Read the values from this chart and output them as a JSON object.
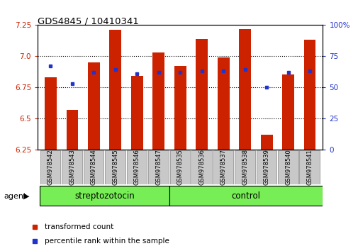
{
  "title": "GDS4845 / 10410341",
  "samples": [
    "GSM978542",
    "GSM978543",
    "GSM978544",
    "GSM978545",
    "GSM978546",
    "GSM978547",
    "GSM978535",
    "GSM978536",
    "GSM978537",
    "GSM978538",
    "GSM978539",
    "GSM978540",
    "GSM978541"
  ],
  "red_values": [
    6.83,
    6.57,
    6.95,
    7.21,
    6.84,
    7.03,
    6.92,
    7.14,
    6.99,
    7.22,
    6.37,
    6.85,
    7.13
  ],
  "blue_values": [
    67,
    53,
    62,
    64,
    61,
    62,
    62,
    63,
    63,
    64,
    50,
    62,
    63
  ],
  "ylim_left": [
    6.25,
    7.25
  ],
  "ylim_right": [
    0,
    100
  ],
  "yticks_left": [
    6.25,
    6.5,
    6.75,
    7.0,
    7.25
  ],
  "yticks_right": [
    0,
    25,
    50,
    75,
    100
  ],
  "ytick_labels_right": [
    "0",
    "25",
    "50",
    "75",
    "100%"
  ],
  "grid_ticks": [
    6.5,
    6.75,
    7.0
  ],
  "group1_label": "streptozotocin",
  "group2_label": "control",
  "group1_count": 6,
  "group2_count": 7,
  "agent_label": "agent",
  "legend_red": "transformed count",
  "legend_blue": "percentile rank within the sample",
  "bar_color": "#CC2200",
  "blue_color": "#2233CC",
  "group_bg_color": "#77EE55",
  "tick_label_bg": "#C8C8C8",
  "bar_width": 0.55
}
